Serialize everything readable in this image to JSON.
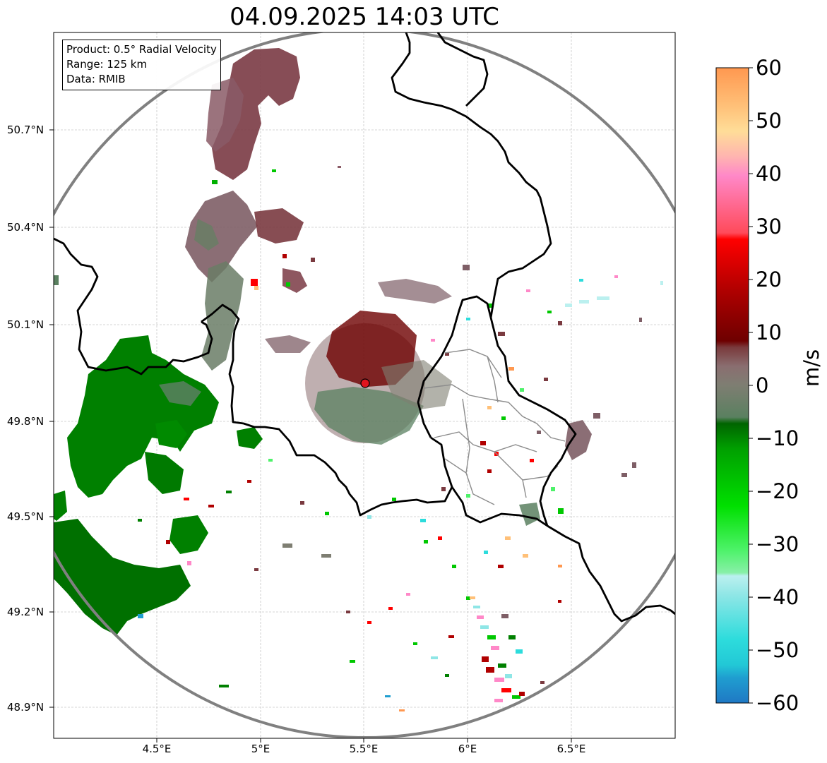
{
  "title": "04.09.2025 14:03 UTC",
  "info_box": {
    "product": "Product: 0.5° Radial Velocity",
    "range": "Range: 125 km",
    "data": "Data: RMIB"
  },
  "lat_labels": [
    "50.7°N",
    "50.4°N",
    "50.1°N",
    "49.8°N",
    "49.5°N",
    "49.2°N",
    "48.9°N"
  ],
  "lon_labels": [
    "4.5°E",
    "5°E",
    "5.5°E",
    "6°E",
    "6.5°E"
  ],
  "colorbar": {
    "label": "m/s",
    "min": -60,
    "max": 60,
    "ticks": [
      "60",
      "50",
      "40",
      "30",
      "20",
      "10",
      "0",
      "−10",
      "−20",
      "−30",
      "−40",
      "−50",
      "−60"
    ]
  },
  "radar_site": {
    "lat": 49.91,
    "lon": 5.51,
    "marker_color": "#e0141e"
  },
  "colors": {
    "range_ring": "#808080",
    "border": "#000000",
    "inner_border": "#8c8c8c",
    "gridline": "#c8c8c8"
  }
}
